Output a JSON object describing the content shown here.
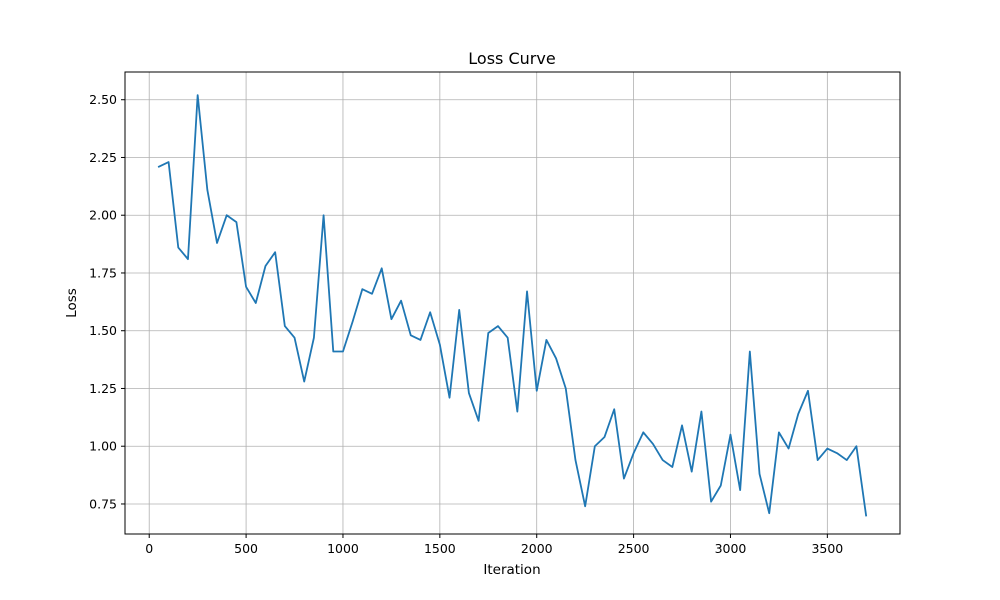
{
  "chart_data": {
    "type": "line",
    "title": "Loss Curve",
    "xlabel": "Iteration",
    "ylabel": "Loss",
    "xlim": [
      -125,
      3875
    ],
    "ylim": [
      0.62,
      2.62
    ],
    "xticks": [
      0,
      500,
      1000,
      1500,
      2000,
      2500,
      3000,
      3500
    ],
    "xtick_labels": [
      "0",
      "500",
      "1000",
      "1500",
      "2000",
      "2500",
      "3000",
      "3500"
    ],
    "yticks": [
      0.75,
      1.0,
      1.25,
      1.5,
      1.75,
      2.0,
      2.25,
      2.5
    ],
    "ytick_labels": [
      "0.75",
      "1.00",
      "1.25",
      "1.50",
      "1.75",
      "2.00",
      "2.25",
      "2.50"
    ],
    "grid": true,
    "line_color": "#1f77b4",
    "series": [
      {
        "x": [
          50,
          100,
          150,
          200,
          250,
          300,
          350,
          400,
          450,
          500,
          550,
          600,
          650,
          700,
          750,
          800,
          850,
          900,
          950,
          1000,
          1050,
          1100,
          1150,
          1200,
          1250,
          1300,
          1350,
          1400,
          1450,
          1500,
          1550,
          1600,
          1650,
          1700,
          1750,
          1800,
          1850,
          1900,
          1950,
          2000,
          2050,
          2100,
          2150,
          2200,
          2250,
          2300,
          2350,
          2400,
          2450,
          2500,
          2550,
          2600,
          2650,
          2700,
          2750,
          2800,
          2850,
          2900,
          2950,
          3000,
          3050,
          3100,
          3150,
          3200,
          3250,
          3300,
          3350,
          3400,
          3450,
          3500,
          3550,
          3600,
          3650,
          3700
        ],
        "values": [
          2.21,
          2.23,
          1.86,
          1.81,
          2.52,
          2.11,
          1.88,
          2.0,
          1.97,
          1.69,
          1.62,
          1.78,
          1.84,
          1.52,
          1.47,
          1.28,
          1.47,
          2.0,
          1.41,
          1.41,
          1.54,
          1.68,
          1.66,
          1.77,
          1.55,
          1.63,
          1.48,
          1.46,
          1.58,
          1.44,
          1.21,
          1.59,
          1.23,
          1.11,
          1.49,
          1.52,
          1.47,
          1.15,
          1.67,
          1.24,
          1.46,
          1.38,
          1.25,
          0.94,
          0.74,
          1.0,
          1.04,
          1.16,
          0.86,
          0.97,
          1.06,
          1.01,
          0.94,
          0.91,
          1.09,
          0.89,
          1.15,
          0.76,
          0.83,
          1.05,
          0.81,
          1.41,
          0.88,
          0.71,
          1.06,
          0.99,
          1.14,
          1.24,
          0.94,
          0.99,
          0.97,
          0.94,
          1.0,
          0.7
        ]
      }
    ]
  }
}
